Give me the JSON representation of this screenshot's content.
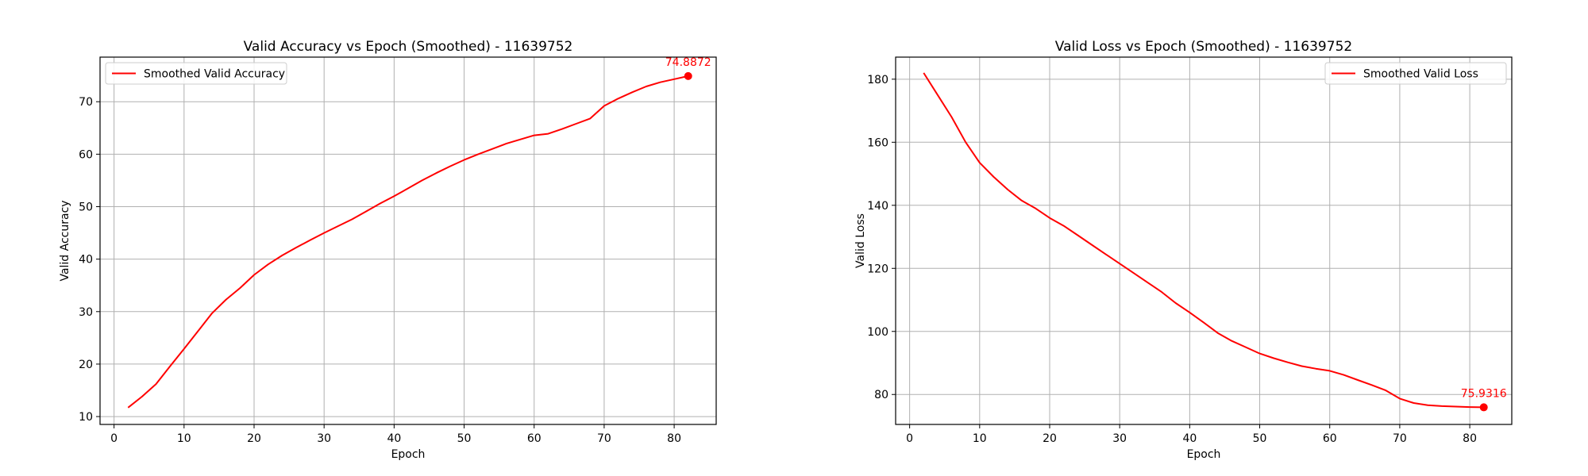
{
  "chart_data": [
    {
      "type": "line",
      "title": "Valid Accuracy vs Epoch (Smoothed) - 11639752",
      "xlabel": "Epoch",
      "ylabel": "Valid Accuracy",
      "xlim": [
        -2,
        86
      ],
      "ylim": [
        8.5,
        78.5
      ],
      "xticks": [
        0,
        10,
        20,
        30,
        40,
        50,
        60,
        70,
        80
      ],
      "yticks": [
        10,
        20,
        30,
        40,
        50,
        60,
        70
      ],
      "grid": true,
      "legend": "top-left",
      "series": [
        {
          "name": "Smoothed Valid Accuracy",
          "color": "#ff0000",
          "x": [
            2,
            4,
            6,
            8,
            10,
            12,
            14,
            16,
            18,
            20,
            22,
            24,
            26,
            28,
            30,
            32,
            34,
            36,
            38,
            40,
            42,
            44,
            46,
            48,
            50,
            52,
            54,
            56,
            58,
            60,
            62,
            64,
            66,
            68,
            70,
            72,
            74,
            76,
            78,
            80,
            82
          ],
          "y": [
            11.7,
            13.8,
            16.2,
            19.6,
            22.9,
            26.3,
            29.7,
            32.3,
            34.5,
            37.0,
            39.0,
            40.7,
            42.2,
            43.6,
            45.0,
            46.3,
            47.6,
            49.1,
            50.6,
            52.0,
            53.5,
            55.0,
            56.4,
            57.7,
            58.9,
            60.0,
            61.0,
            62.0,
            62.8,
            63.6,
            63.9,
            64.8,
            65.8,
            66.8,
            69.2,
            70.6,
            71.8,
            72.9,
            73.7,
            74.3,
            74.8872
          ]
        }
      ],
      "annotations": [
        {
          "x": 82,
          "y": 74.8872,
          "text": "74.8872"
        }
      ]
    },
    {
      "type": "line",
      "title": "Valid Loss vs Epoch (Smoothed) - 11639752",
      "xlabel": "Epoch",
      "ylabel": "Valid Loss",
      "xlim": [
        -2,
        86
      ],
      "ylim": [
        70.5,
        187
      ],
      "xticks": [
        0,
        10,
        20,
        30,
        40,
        50,
        60,
        70,
        80
      ],
      "yticks": [
        80,
        100,
        120,
        140,
        160,
        180
      ],
      "grid": true,
      "legend": "top-right",
      "series": [
        {
          "name": "Smoothed Valid Loss",
          "color": "#ff0000",
          "x": [
            2,
            4,
            6,
            8,
            10,
            12,
            14,
            16,
            18,
            20,
            22,
            24,
            26,
            28,
            30,
            32,
            34,
            36,
            38,
            40,
            42,
            44,
            46,
            48,
            50,
            52,
            54,
            56,
            58,
            60,
            62,
            64,
            66,
            68,
            70,
            72,
            74,
            76,
            78,
            80,
            82
          ],
          "y": [
            182.0,
            175.0,
            168.0,
            160.0,
            153.5,
            149.0,
            145.0,
            141.5,
            139.0,
            136.0,
            133.5,
            130.5,
            127.5,
            124.5,
            121.5,
            118.5,
            115.5,
            112.5,
            109.0,
            106.0,
            102.8,
            99.5,
            97.0,
            95.0,
            93.0,
            91.5,
            90.2,
            89.0,
            88.2,
            87.5,
            86.2,
            84.6,
            83.0,
            81.3,
            78.7,
            77.3,
            76.6,
            76.3,
            76.15,
            76.02,
            75.9316
          ]
        }
      ],
      "annotations": [
        {
          "x": 82,
          "y": 75.9316,
          "text": "75.9316"
        }
      ]
    }
  ]
}
